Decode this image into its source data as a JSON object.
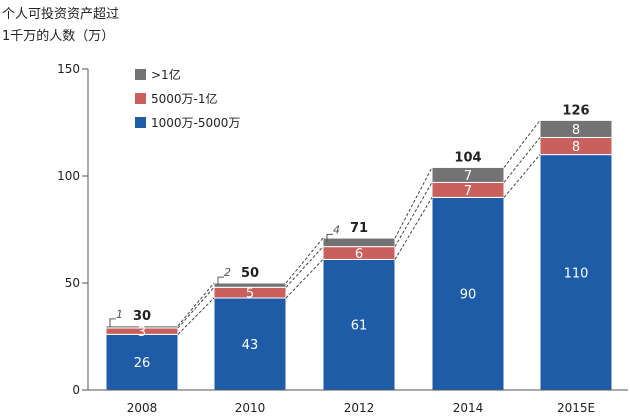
{
  "chart_data": {
    "type": "bar",
    "stacked": true,
    "ylabel_lines": [
      "个人可投资资产超过",
      "1千万的人数（万）"
    ],
    "categories": [
      "2008",
      "2010",
      "2012",
      "2014",
      "2015E"
    ],
    "series": [
      {
        "name": "1000万-5000万",
        "values": [
          26,
          43,
          61,
          90,
          110
        ],
        "color": "#1f5ca8"
      },
      {
        "name": "5000万-1亿",
        "values": [
          3,
          5,
          6,
          7,
          8
        ],
        "color": "#c9605d"
      },
      {
        "name": ">1亿",
        "values": [
          1,
          2,
          4,
          7,
          8
        ],
        "color": "#737373"
      }
    ],
    "totals": [
      30,
      50,
      71,
      104,
      126
    ],
    "legend_order": [
      ">1亿",
      "5000万-1亿",
      "1000万-5000万"
    ],
    "legend_position": "top-left",
    "ylim": [
      0,
      150
    ],
    "yticks": [
      0,
      50,
      100,
      150
    ],
    "grid": false,
    "connectors": "dashed lines between consecutive stacked bars"
  }
}
